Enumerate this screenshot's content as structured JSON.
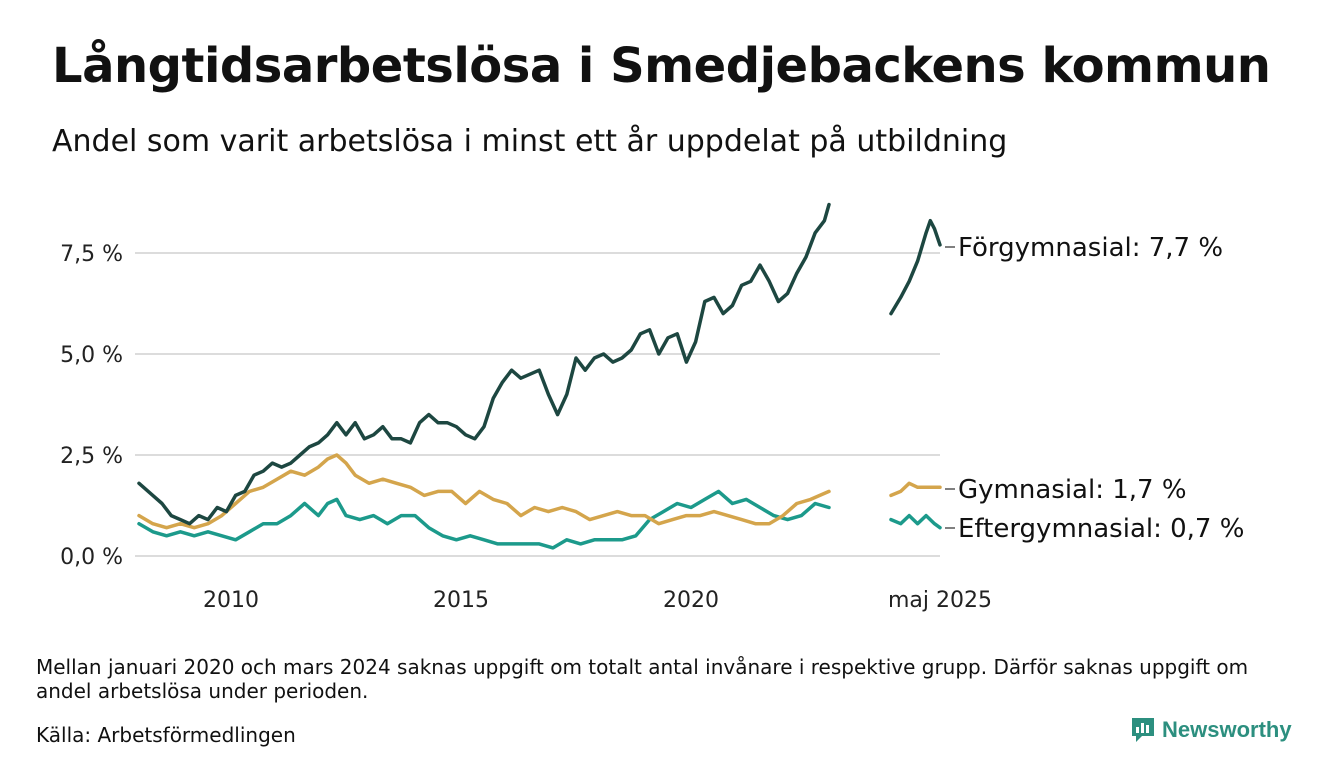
{
  "title": "Långtidsarbetslösa i Smedjebackens kommun",
  "subtitle": "Andel som varit arbetslösa i minst ett år uppdelat på utbildning",
  "note": "Mellan januari 2020 och mars 2024 saknas uppgift om totalt antal invånare i respektive grupp. Därför saknas uppgift om andel arbetslösa under perioden.",
  "source": "Källa: Arbetsförmedlingen",
  "brand": {
    "name": "Newsworthy",
    "icon": "newsworthy-logo-icon"
  },
  "chart_data": {
    "type": "line",
    "x_unit": "year (decimal)",
    "ylim": [
      0,
      9
    ],
    "yticks": [
      0,
      2.5,
      5,
      7.5
    ],
    "ytick_labels": [
      "0,0 %",
      "2,5 %",
      "5,0 %",
      "7,5 %"
    ],
    "xticks": [
      2010,
      2015,
      2020,
      2025.33
    ],
    "xtick_labels": [
      "2010",
      "2015",
      "2020",
      "maj 2025"
    ],
    "grid": true,
    "legend": "end-labels-right",
    "break_note": "gap between 2020 and 2024",
    "series": [
      {
        "name": "Förgymnasial",
        "end_label": "Förgymnasial: 7,7 %",
        "color": "#1d4741",
        "segments": [
          [
            [
              2008.0,
              1.8
            ],
            [
              2008.3,
              1.5
            ],
            [
              2008.5,
              1.3
            ],
            [
              2008.7,
              1.0
            ],
            [
              2008.9,
              0.9
            ],
            [
              2009.1,
              0.8
            ],
            [
              2009.3,
              1.0
            ],
            [
              2009.5,
              0.9
            ],
            [
              2009.7,
              1.2
            ],
            [
              2009.9,
              1.1
            ],
            [
              2010.1,
              1.5
            ],
            [
              2010.3,
              1.6
            ],
            [
              2010.5,
              2.0
            ],
            [
              2010.7,
              2.1
            ],
            [
              2010.9,
              2.3
            ],
            [
              2011.1,
              2.2
            ],
            [
              2011.3,
              2.3
            ],
            [
              2011.5,
              2.5
            ],
            [
              2011.7,
              2.7
            ],
            [
              2011.9,
              2.8
            ],
            [
              2012.1,
              3.0
            ],
            [
              2012.3,
              3.3
            ],
            [
              2012.5,
              3.0
            ],
            [
              2012.7,
              3.3
            ],
            [
              2012.9,
              2.9
            ],
            [
              2013.1,
              3.0
            ],
            [
              2013.3,
              3.2
            ],
            [
              2013.5,
              2.9
            ],
            [
              2013.7,
              2.9
            ],
            [
              2013.9,
              2.8
            ],
            [
              2014.1,
              3.3
            ],
            [
              2014.3,
              3.5
            ],
            [
              2014.5,
              3.3
            ],
            [
              2014.7,
              3.3
            ],
            [
              2014.9,
              3.2
            ],
            [
              2015.1,
              3.0
            ],
            [
              2015.3,
              2.9
            ],
            [
              2015.5,
              3.2
            ],
            [
              2015.7,
              3.9
            ],
            [
              2015.9,
              4.3
            ],
            [
              2016.1,
              4.6
            ],
            [
              2016.3,
              4.4
            ],
            [
              2016.5,
              4.5
            ],
            [
              2016.7,
              4.6
            ],
            [
              2016.9,
              4.0
            ],
            [
              2017.1,
              3.5
            ],
            [
              2017.3,
              4.0
            ],
            [
              2017.5,
              4.9
            ],
            [
              2017.7,
              4.6
            ],
            [
              2017.9,
              4.9
            ],
            [
              2018.1,
              5.0
            ],
            [
              2018.3,
              4.8
            ],
            [
              2018.5,
              4.9
            ],
            [
              2018.7,
              5.1
            ],
            [
              2018.9,
              5.5
            ],
            [
              2019.1,
              5.6
            ],
            [
              2019.3,
              5.0
            ],
            [
              2019.5,
              5.4
            ],
            [
              2019.7,
              5.5
            ],
            [
              2019.9,
              4.8
            ],
            [
              2020.1,
              5.3
            ],
            [
              2020.3,
              6.3
            ],
            [
              2020.5,
              6.4
            ],
            [
              2020.7,
              6.0
            ],
            [
              2020.9,
              6.2
            ],
            [
              2021.1,
              6.7
            ],
            [
              2021.3,
              6.8
            ],
            [
              2021.5,
              7.2
            ],
            [
              2021.7,
              6.8
            ],
            [
              2021.9,
              6.3
            ],
            [
              2022.1,
              6.5
            ],
            [
              2022.3,
              7.0
            ],
            [
              2022.5,
              7.4
            ],
            [
              2022.7,
              8.0
            ],
            [
              2022.9,
              8.3
            ],
            [
              2023.0,
              8.7
            ]
          ],
          [
            [
              2024.17,
              6.0
            ],
            [
              2024.4,
              6.4
            ],
            [
              2024.6,
              6.8
            ],
            [
              2024.8,
              7.3
            ],
            [
              2025.0,
              8.0
            ],
            [
              2025.1,
              8.3
            ],
            [
              2025.2,
              8.1
            ],
            [
              2025.33,
              7.7
            ]
          ]
        ]
      },
      {
        "name": "Gymnasial",
        "end_label": "Gymnasial: 1,7 %",
        "color": "#d4a54c",
        "segments": [
          [
            [
              2008.0,
              1.0
            ],
            [
              2008.3,
              0.8
            ],
            [
              2008.6,
              0.7
            ],
            [
              2008.9,
              0.8
            ],
            [
              2009.2,
              0.7
            ],
            [
              2009.5,
              0.8
            ],
            [
              2009.8,
              1.0
            ],
            [
              2010.1,
              1.3
            ],
            [
              2010.4,
              1.6
            ],
            [
              2010.7,
              1.7
            ],
            [
              2011.0,
              1.9
            ],
            [
              2011.3,
              2.1
            ],
            [
              2011.6,
              2.0
            ],
            [
              2011.9,
              2.2
            ],
            [
              2012.1,
              2.4
            ],
            [
              2012.3,
              2.5
            ],
            [
              2012.5,
              2.3
            ],
            [
              2012.7,
              2.0
            ],
            [
              2013.0,
              1.8
            ],
            [
              2013.3,
              1.9
            ],
            [
              2013.6,
              1.8
            ],
            [
              2013.9,
              1.7
            ],
            [
              2014.2,
              1.5
            ],
            [
              2014.5,
              1.6
            ],
            [
              2014.8,
              1.6
            ],
            [
              2015.1,
              1.3
            ],
            [
              2015.4,
              1.6
            ],
            [
              2015.7,
              1.4
            ],
            [
              2016.0,
              1.3
            ],
            [
              2016.3,
              1.0
            ],
            [
              2016.6,
              1.2
            ],
            [
              2016.9,
              1.1
            ],
            [
              2017.2,
              1.2
            ],
            [
              2017.5,
              1.1
            ],
            [
              2017.8,
              0.9
            ],
            [
              2018.1,
              1.0
            ],
            [
              2018.4,
              1.1
            ],
            [
              2018.7,
              1.0
            ],
            [
              2019.0,
              1.0
            ],
            [
              2019.3,
              0.8
            ],
            [
              2019.6,
              0.9
            ],
            [
              2019.9,
              1.0
            ],
            [
              2020.2,
              1.0
            ],
            [
              2020.5,
              1.1
            ],
            [
              2020.8,
              1.0
            ],
            [
              2021.1,
              0.9
            ],
            [
              2021.4,
              0.8
            ],
            [
              2021.7,
              0.8
            ],
            [
              2022.0,
              1.0
            ],
            [
              2022.3,
              1.3
            ],
            [
              2022.6,
              1.4
            ],
            [
              2022.8,
              1.5
            ],
            [
              2023.0,
              1.6
            ]
          ],
          [
            [
              2024.17,
              1.5
            ],
            [
              2024.4,
              1.6
            ],
            [
              2024.6,
              1.8
            ],
            [
              2024.8,
              1.7
            ],
            [
              2025.0,
              1.7
            ],
            [
              2025.2,
              1.7
            ],
            [
              2025.33,
              1.7
            ]
          ]
        ]
      },
      {
        "name": "Eftergymnasial",
        "end_label": "Eftergymnasial: 0,7 %",
        "color": "#1c9a8b",
        "segments": [
          [
            [
              2008.0,
              0.8
            ],
            [
              2008.3,
              0.6
            ],
            [
              2008.6,
              0.5
            ],
            [
              2008.9,
              0.6
            ],
            [
              2009.2,
              0.5
            ],
            [
              2009.5,
              0.6
            ],
            [
              2009.8,
              0.5
            ],
            [
              2010.1,
              0.4
            ],
            [
              2010.4,
              0.6
            ],
            [
              2010.7,
              0.8
            ],
            [
              2011.0,
              0.8
            ],
            [
              2011.3,
              1.0
            ],
            [
              2011.6,
              1.3
            ],
            [
              2011.9,
              1.0
            ],
            [
              2012.1,
              1.3
            ],
            [
              2012.3,
              1.4
            ],
            [
              2012.5,
              1.0
            ],
            [
              2012.8,
              0.9
            ],
            [
              2013.1,
              1.0
            ],
            [
              2013.4,
              0.8
            ],
            [
              2013.7,
              1.0
            ],
            [
              2014.0,
              1.0
            ],
            [
              2014.3,
              0.7
            ],
            [
              2014.6,
              0.5
            ],
            [
              2014.9,
              0.4
            ],
            [
              2015.2,
              0.5
            ],
            [
              2015.5,
              0.4
            ],
            [
              2015.8,
              0.3
            ],
            [
              2016.1,
              0.3
            ],
            [
              2016.4,
              0.3
            ],
            [
              2016.7,
              0.3
            ],
            [
              2017.0,
              0.2
            ],
            [
              2017.3,
              0.4
            ],
            [
              2017.6,
              0.3
            ],
            [
              2017.9,
              0.4
            ],
            [
              2018.2,
              0.4
            ],
            [
              2018.5,
              0.4
            ],
            [
              2018.8,
              0.5
            ],
            [
              2019.1,
              0.9
            ],
            [
              2019.4,
              1.1
            ],
            [
              2019.7,
              1.3
            ],
            [
              2020.0,
              1.2
            ],
            [
              2020.3,
              1.4
            ],
            [
              2020.6,
              1.6
            ],
            [
              2020.9,
              1.3
            ],
            [
              2021.2,
              1.4
            ],
            [
              2021.5,
              1.2
            ],
            [
              2021.8,
              1.0
            ],
            [
              2022.1,
              0.9
            ],
            [
              2022.4,
              1.0
            ],
            [
              2022.7,
              1.3
            ],
            [
              2023.0,
              1.2
            ]
          ],
          [
            [
              2024.17,
              0.9
            ],
            [
              2024.4,
              0.8
            ],
            [
              2024.6,
              1.0
            ],
            [
              2024.8,
              0.8
            ],
            [
              2025.0,
              1.0
            ],
            [
              2025.2,
              0.8
            ],
            [
              2025.33,
              0.7
            ]
          ]
        ]
      }
    ]
  }
}
